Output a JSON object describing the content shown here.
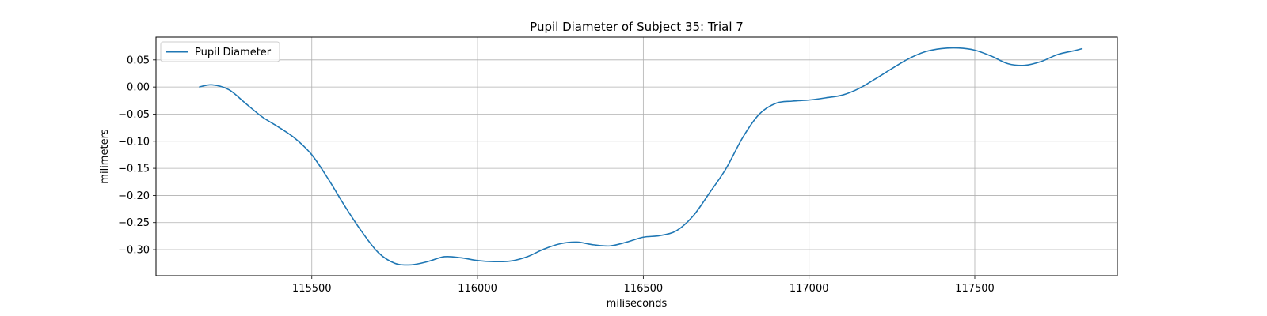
{
  "chart_data": {
    "type": "line",
    "title": "Pupil Diameter of Subject 35: Trial 7",
    "xlabel": "miliseconds",
    "ylabel": "milimeters",
    "xlim": [
      115030,
      117930
    ],
    "ylim": [
      -0.348,
      0.092
    ],
    "xticks": [
      115500,
      116000,
      116500,
      117000,
      117500
    ],
    "yticks": [
      0.05,
      0.0,
      -0.05,
      -0.1,
      -0.15,
      -0.2,
      -0.25,
      -0.3
    ],
    "ytick_labels": [
      "0.05",
      "0.00",
      "−0.05",
      "−0.10",
      "−0.15",
      "−0.20",
      "−0.25",
      "−0.30"
    ],
    "grid": true,
    "legend_position": "upper-left",
    "series": [
      {
        "name": "Pupil Diameter",
        "color": "#1f77b4",
        "x": [
          115160,
          115200,
          115250,
          115300,
          115350,
          115400,
          115450,
          115500,
          115550,
          115600,
          115650,
          115700,
          115750,
          115800,
          115850,
          115900,
          115950,
          116000,
          116050,
          116100,
          116150,
          116200,
          116250,
          116300,
          116350,
          116400,
          116450,
          116500,
          116550,
          116600,
          116650,
          116700,
          116750,
          116800,
          116850,
          116900,
          116950,
          117000,
          117050,
          117100,
          117150,
          117200,
          117250,
          117300,
          117350,
          117400,
          117450,
          117500,
          117550,
          117600,
          117650,
          117700,
          117750,
          117800,
          117825
        ],
        "y": [
          0.0,
          0.004,
          -0.005,
          -0.03,
          -0.055,
          -0.074,
          -0.095,
          -0.125,
          -0.17,
          -0.22,
          -0.266,
          -0.305,
          -0.325,
          -0.328,
          -0.322,
          -0.313,
          -0.315,
          -0.32,
          -0.322,
          -0.321,
          -0.313,
          -0.299,
          -0.289,
          -0.286,
          -0.291,
          -0.293,
          -0.286,
          -0.277,
          -0.274,
          -0.265,
          -0.238,
          -0.195,
          -0.15,
          -0.093,
          -0.05,
          -0.03,
          -0.026,
          -0.024,
          -0.02,
          -0.015,
          -0.003,
          0.015,
          0.034,
          0.052,
          0.065,
          0.071,
          0.072,
          0.068,
          0.057,
          0.043,
          0.04,
          0.047,
          0.06,
          0.067,
          0.071
        ]
      }
    ]
  }
}
